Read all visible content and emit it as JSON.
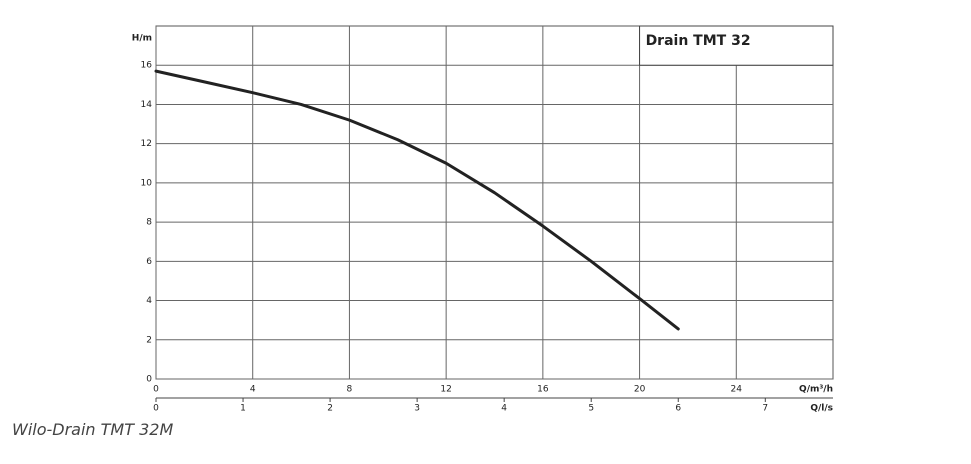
{
  "chart_data": {
    "type": "line",
    "title": "Drain TMT 32",
    "x": [
      0,
      2,
      4,
      6,
      8,
      10,
      12,
      14,
      16,
      18,
      20,
      21.6
    ],
    "series": [
      {
        "color": "#222222",
        "values": [
          15.7,
          15.15,
          14.6,
          14,
          13.2,
          12.2,
          11,
          9.5,
          7.8,
          6,
          4.1,
          2.55
        ]
      }
    ],
    "xlim": [
      0,
      28
    ],
    "xticks": [
      0,
      4,
      8,
      12,
      16,
      20,
      24
    ],
    "ylim": [
      0,
      18
    ],
    "yticks": [
      0,
      2,
      4,
      6,
      8,
      10,
      12,
      14,
      16
    ],
    "x2lim": [
      0,
      7.7778
    ],
    "x2ticks": [
      0,
      1,
      2,
      3,
      4,
      5,
      6,
      7
    ],
    "ylabel": "H/m",
    "xlabel": "Q/m³/h",
    "x2label": "Q/l/s",
    "grid": true
  },
  "caption": "Wilo-Drain TMT 32M"
}
